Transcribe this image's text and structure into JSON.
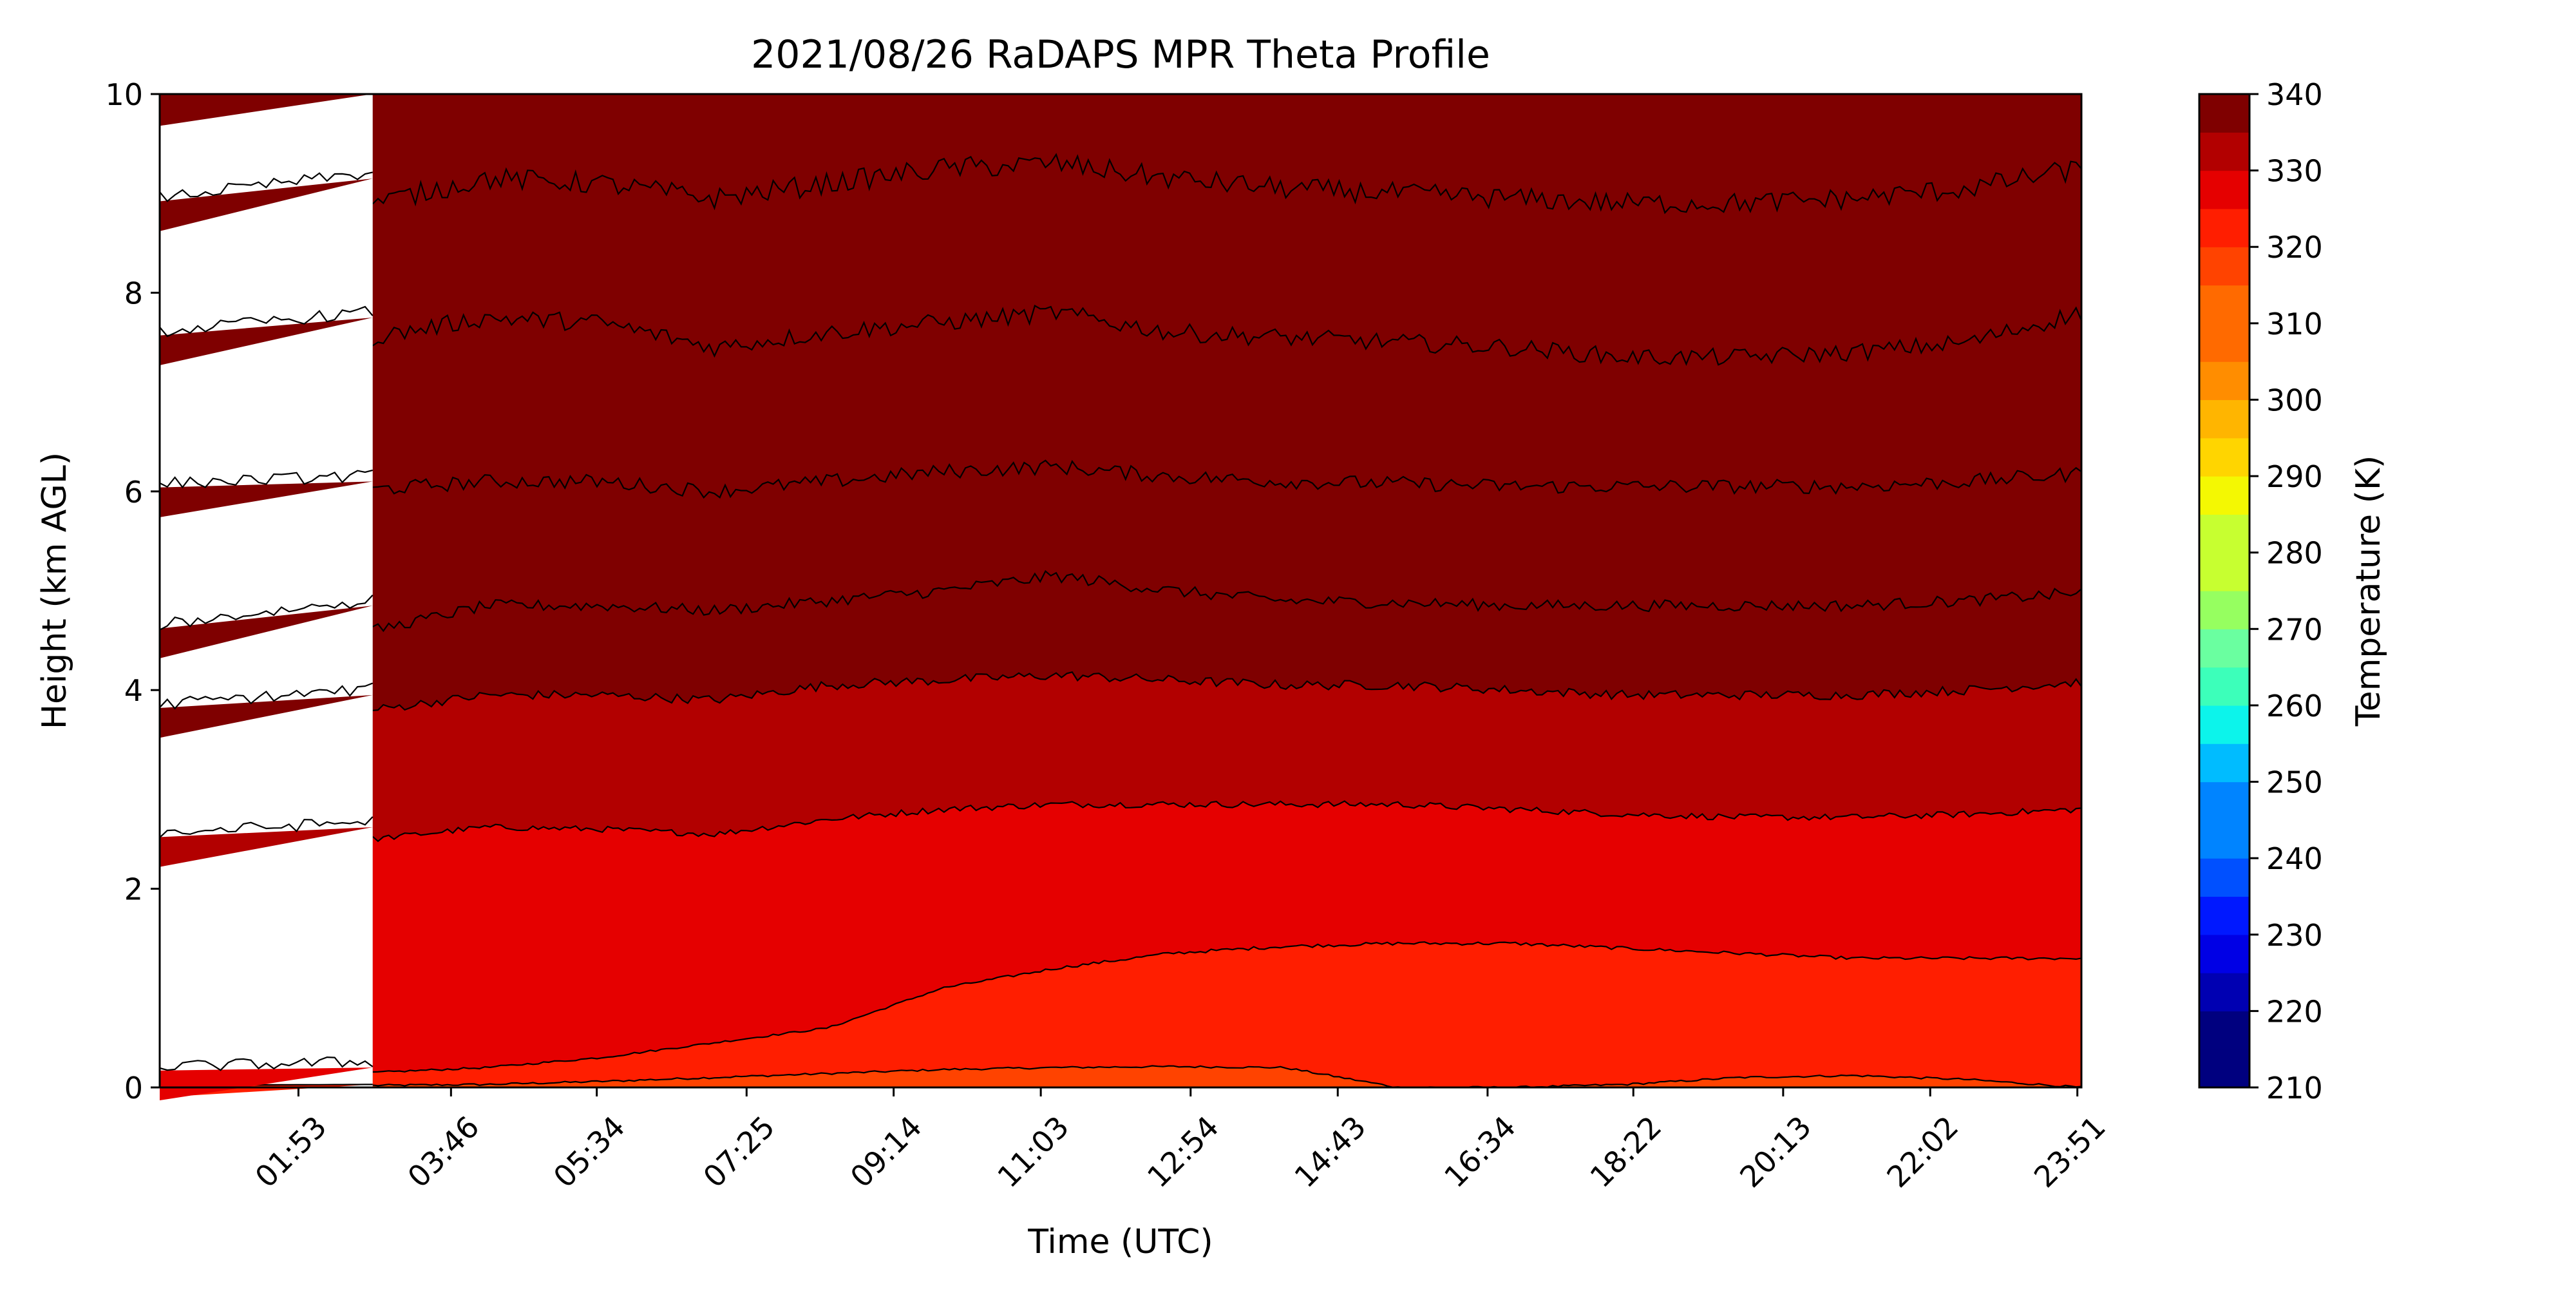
{
  "chart_data": {
    "type": "heatmap",
    "title": "2021/08/26 RaDAPS MPR Theta Profile",
    "xlabel": "Time (UTC)",
    "ylabel": "Height (km AGL)",
    "xticks": [
      "01:53",
      "03:46",
      "05:34",
      "07:25",
      "09:14",
      "11:03",
      "12:54",
      "14:43",
      "16:34",
      "18:22",
      "20:13",
      "22:02",
      "23:51"
    ],
    "xtick_hours": [
      1.883,
      3.767,
      5.567,
      7.417,
      9.233,
      11.05,
      12.9,
      14.717,
      16.567,
      18.367,
      20.217,
      22.033,
      23.85
    ],
    "xlim_hours": [
      0.17,
      23.9
    ],
    "ylim": [
      0,
      10
    ],
    "yticks": [
      0,
      2,
      4,
      6,
      8,
      10
    ],
    "data_gap_hours": [
      0.17,
      2.8
    ],
    "colorbar": {
      "label": "Temperature (K)",
      "range": [
        210,
        340
      ],
      "step": 5,
      "ticks": [
        210,
        220,
        230,
        240,
        250,
        260,
        270,
        280,
        290,
        300,
        310,
        320,
        330,
        340
      ],
      "colors": [
        "#00007f",
        "#0000b2",
        "#0000e5",
        "#0018ff",
        "#0050ff",
        "#0084ff",
        "#00bcff",
        "#0cf4eb",
        "#3cffba",
        "#6affa0",
        "#96ff60",
        "#c7ff30",
        "#f4f802",
        "#ffd500",
        "#ffb500",
        "#ff8d00",
        "#ff6a00",
        "#ff4300",
        "#ff1e00",
        "#e50000",
        "#b20000",
        "#7f0000"
      ]
    },
    "contour_levels": [
      {
        "theta": 300,
        "height_km": [
          0.02,
          0.03,
          0.06,
          0.1,
          0.14,
          0.18,
          0.2,
          0.21,
          0.2,
          0.0,
          0.0,
          0.03,
          0.1,
          0.12,
          0.08,
          0.0
        ]
      },
      {
        "theta": 305,
        "height_km": [
          0.15,
          0.2,
          0.3,
          0.45,
          0.6,
          1.0,
          1.2,
          1.35,
          1.42,
          1.45,
          1.45,
          1.4,
          1.35,
          1.3,
          1.3,
          1.3
        ]
      },
      {
        "theta": 310,
        "height_km": [
          2.5,
          2.62,
          2.6,
          2.55,
          2.7,
          2.8,
          2.85,
          2.85,
          2.85,
          2.85,
          2.8,
          2.75,
          2.72,
          2.72,
          2.75,
          2.8
        ]
      },
      {
        "theta": 315,
        "height_km": [
          3.8,
          3.95,
          3.95,
          3.9,
          4.05,
          4.1,
          4.15,
          4.1,
          4.05,
          4.05,
          4.0,
          3.95,
          3.95,
          3.95,
          4.0,
          4.08
        ]
      },
      {
        "theta": 320,
        "height_km": [
          4.6,
          4.85,
          4.85,
          4.8,
          4.9,
          5.0,
          5.15,
          5.0,
          4.9,
          4.88,
          4.85,
          4.85,
          4.85,
          4.85,
          4.9,
          4.98
        ]
      },
      {
        "theta": 325,
        "height_km": [
          6.02,
          6.1,
          6.1,
          6.0,
          6.1,
          6.2,
          6.25,
          6.15,
          6.1,
          6.08,
          6.05,
          6.05,
          6.05,
          6.05,
          6.1,
          6.18
        ]
      },
      {
        "theta": 330,
        "height_km": [
          7.55,
          7.75,
          7.7,
          7.45,
          7.6,
          7.7,
          7.8,
          7.6,
          7.55,
          7.5,
          7.45,
          7.35,
          7.35,
          7.4,
          7.5,
          7.8
        ]
      },
      {
        "theta": 335,
        "height_km": [
          8.9,
          9.15,
          9.1,
          8.95,
          9.1,
          9.25,
          9.3,
          9.15,
          9.05,
          9.0,
          8.95,
          8.9,
          8.9,
          8.95,
          9.05,
          9.25
        ]
      }
    ]
  }
}
